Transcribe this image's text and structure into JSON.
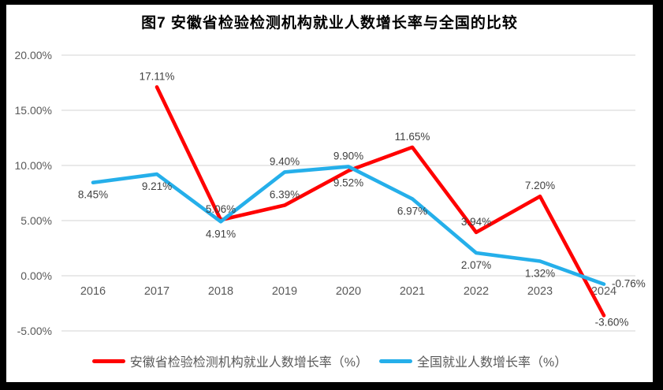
{
  "title": "图7 安徽省检验检测机构就业人数增长率与全国的比较",
  "chart_data": {
    "type": "line",
    "title": "图7 安徽省检验检测机构就业人数增长率与全国的比较",
    "categories": [
      "2016",
      "2017",
      "2018",
      "2019",
      "2020",
      "2021",
      "2022",
      "2023",
      "2024"
    ],
    "series": [
      {
        "name": "安徽省检验检测机构就业人数增长率（%）",
        "color": "#FF0000",
        "values": [
          null,
          17.11,
          5.06,
          6.39,
          9.52,
          11.65,
          3.94,
          7.2,
          -3.6
        ],
        "labels": [
          "",
          "17.11%",
          "5.06%",
          "6.39%",
          "9.52%",
          "11.65%",
          "3.94%",
          "7.20%",
          "-3.60%"
        ],
        "label_placement": [
          "",
          "above",
          "above",
          "above",
          "below",
          "above",
          "above",
          "above",
          "below-tight"
        ]
      },
      {
        "name": "全国就业人数增长率（%）",
        "color": "#25AFEA",
        "values": [
          8.45,
          9.21,
          4.91,
          9.4,
          9.9,
          6.97,
          2.07,
          1.32,
          -0.76
        ],
        "labels": [
          "8.45%",
          "9.21%",
          "4.91%",
          "9.40%",
          "9.90%",
          "6.97%",
          "2.07%",
          "1.32%",
          "-0.76%"
        ],
        "label_placement": [
          "below",
          "below",
          "below",
          "above",
          "above",
          "below",
          "below",
          "below",
          "right"
        ]
      }
    ],
    "y_axis": {
      "tick_labels": [
        "20.00%",
        "15.00%",
        "10.00%",
        "5.00%",
        "0.00%",
        "-5.00%"
      ],
      "tick_values": [
        20,
        15,
        10,
        5,
        0,
        -5
      ],
      "min": -5,
      "max": 20
    },
    "grid": true,
    "legend_position": "bottom",
    "colors": {
      "gridline": "#E2E2E2",
      "axis_text": "#595959",
      "data_label_text": "#404040",
      "frame": "#000000",
      "background": "#FFFFFF"
    }
  }
}
